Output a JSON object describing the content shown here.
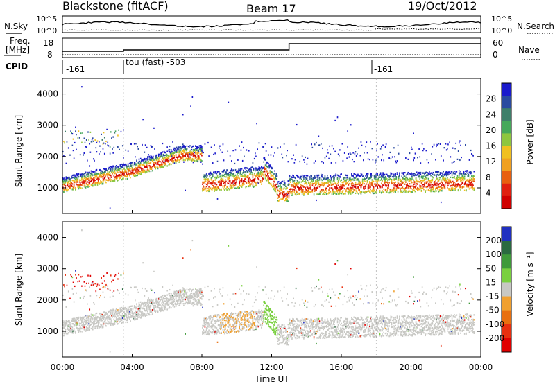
{
  "header": {
    "station": "Blackstone (fitACF)",
    "beam": "Beam 17",
    "date": "19/Oct/2012"
  },
  "top_panels": {
    "nsky_label": "N.Sky",
    "nsky_ticks": [
      "10^5",
      "10^0"
    ],
    "nsearch_label": "N.Search",
    "nsearch_ticks": [
      "10^5",
      "10^0"
    ],
    "freq_label_1": "Freq.",
    "freq_label_2": "[MHz]",
    "freq_ticks": [
      "18",
      "8"
    ],
    "nave_label": "Nave",
    "nave_ticks": [
      "60",
      "0"
    ],
    "cpid_label": "CPID",
    "cpid_segments": [
      {
        "label": "-161",
        "start": 0,
        "end": 3.5
      },
      {
        "label": "tou (fast) -503",
        "start": 3.5,
        "end": 18.0
      },
      {
        "label": "-161",
        "start": 18.0,
        "end": 24
      }
    ]
  },
  "x_axis": {
    "label": "Time UT",
    "ticks": [
      "00:00",
      "04:00",
      "08:00",
      "12:00",
      "16:00",
      "20:00",
      "00:00"
    ],
    "range_hours": [
      0,
      24
    ]
  },
  "chart_data": [
    {
      "type": "heatmap",
      "name": "power",
      "ylabel": "Slant Range [km]",
      "ylim": [
        180,
        4500
      ],
      "yticks": [
        "1000",
        "2000",
        "3000",
        "4000"
      ],
      "colorbar_label": "Power [dB]",
      "colorbar_ticks": [
        "28",
        "24",
        "20",
        "16",
        "12",
        "8",
        "4"
      ],
      "colorbar_colors": [
        "#1a1acc",
        "#2a4aa0",
        "#3f7f6a",
        "#46a85a",
        "#8ec63f",
        "#f0c020",
        "#f0a020",
        "#e86010",
        "#e02010",
        "#d00000"
      ]
    },
    {
      "type": "heatmap",
      "name": "velocity",
      "ylabel": "Slant Range [km]",
      "ylim": [
        180,
        4500
      ],
      "yticks": [
        "1000",
        "2000",
        "3000",
        "4000"
      ],
      "colorbar_label": "Velocity [m s⁻¹]",
      "colorbar_ticks": [
        "200",
        "100",
        "50",
        "15",
        "-15",
        "-50",
        "-100",
        "-200"
      ],
      "colorbar_colors": [
        "#2030c0",
        "#2a6a40",
        "#3f9a3a",
        "#7ad040",
        "#c8c8c4",
        "#f0a030",
        "#e87010",
        "#e83010",
        "#e00000"
      ]
    }
  ]
}
